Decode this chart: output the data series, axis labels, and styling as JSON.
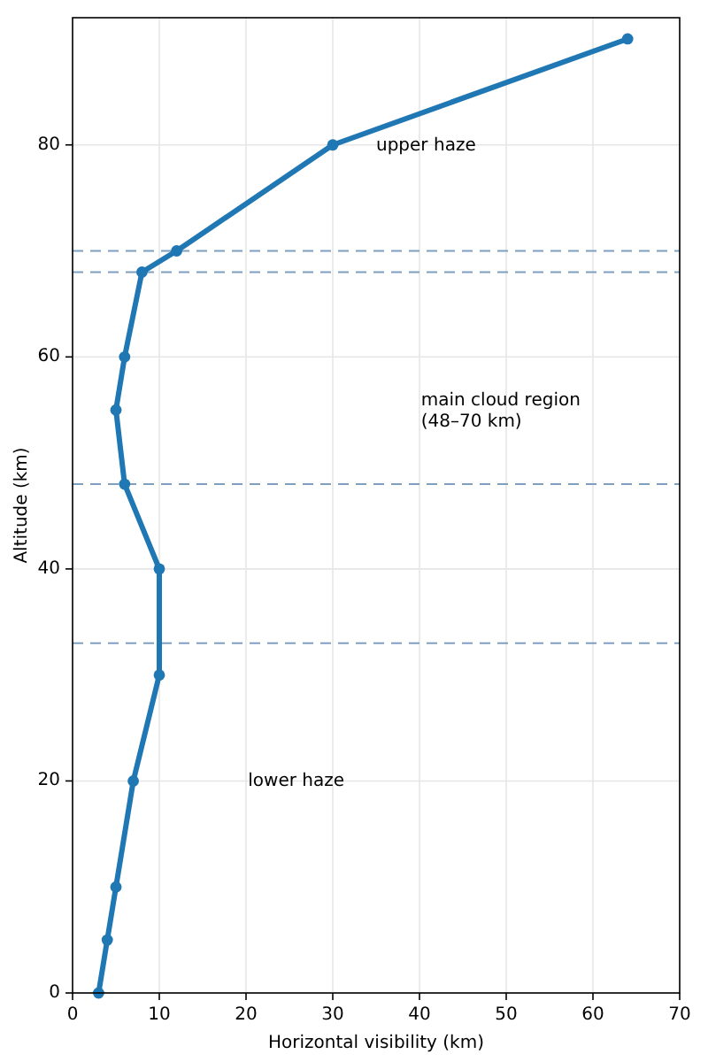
{
  "chart_data": {
    "type": "line",
    "xlabel": "Horizontal visibility (km)",
    "ylabel": "Altitude (km)",
    "xlim": [
      0,
      70
    ],
    "xticks": [
      0,
      10,
      20,
      30,
      40,
      50,
      60,
      70
    ],
    "ylim": [
      0,
      92
    ],
    "yticks": [
      0,
      20,
      40,
      60,
      80
    ],
    "grid": true,
    "marker": "circle",
    "line_style": "solid",
    "series": [
      {
        "color": "#1f77b4",
        "x": [
          3,
          4,
          5,
          7,
          10,
          10,
          6,
          5,
          6,
          8,
          12,
          30,
          64
        ],
        "values": [
          0,
          5,
          10,
          20,
          30,
          40,
          48,
          55,
          60,
          68,
          70,
          80,
          90
        ]
      }
    ],
    "ref_lines": [
      {
        "axis": "y",
        "value": 33,
        "color": "#7f9fbf",
        "line_style": "dashed"
      },
      {
        "axis": "y",
        "value": 48,
        "color": "#7f9fbf",
        "line_style": "dashed"
      },
      {
        "axis": "y",
        "value": 68,
        "color": "#7f9fbf",
        "line_style": "dashed"
      },
      {
        "axis": "y",
        "value": 70,
        "color": "#7f9fbf",
        "line_style": "dashed"
      }
    ],
    "annotations": [
      "upper haze",
      "main cloud region\n(48–70 km)",
      "lower haze"
    ]
  }
}
